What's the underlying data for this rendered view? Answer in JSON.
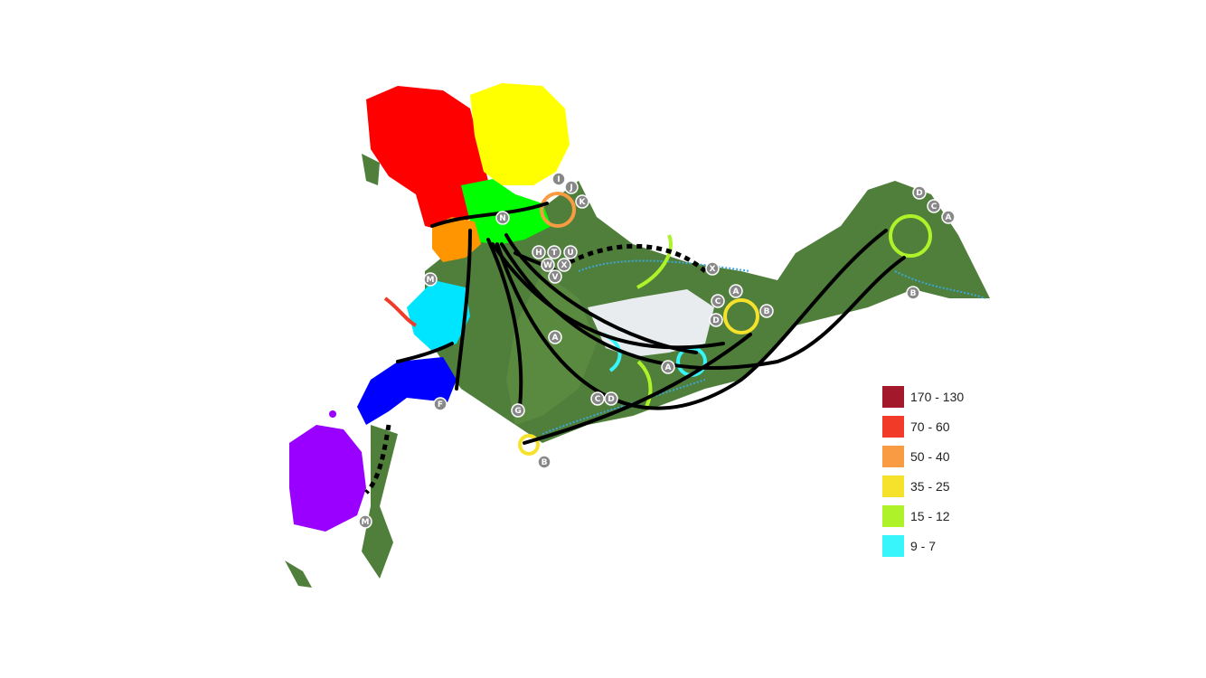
{
  "legend": {
    "items": [
      {
        "label": "170 - 130",
        "color": "#a3182a"
      },
      {
        "label": "70 - 60",
        "color": "#f23a28"
      },
      {
        "label": "50 - 40",
        "color": "#f99b42"
      },
      {
        "label": "35 - 25",
        "color": "#f7e22b"
      },
      {
        "label": "15 - 12",
        "color": "#aef22a"
      },
      {
        "label": "9 - 7",
        "color": "#38f5fb"
      }
    ]
  },
  "markers": [
    "I",
    "J",
    "K",
    "N",
    "H",
    "T",
    "U",
    "W",
    "X",
    "V",
    "M",
    "A",
    "G",
    "C",
    "D",
    "A",
    "F",
    "M",
    "B",
    "X",
    "C",
    "A",
    "D",
    "B",
    "D",
    "C",
    "A",
    "B"
  ],
  "colors": {
    "land": "#4a7d3a",
    "africa": "#ff0000",
    "arabia": "#ffff00",
    "europe": "#ff9500",
    "persia": "#00ff00",
    "india": "#00e5ff",
    "asia_se": "#0000ff",
    "australia": "#9900ff",
    "route": "#000000",
    "ice_coast": "#3da5d9"
  }
}
